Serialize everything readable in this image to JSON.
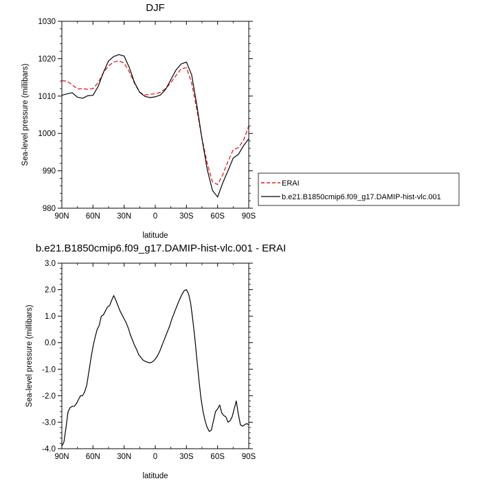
{
  "chart_data": [
    {
      "type": "line",
      "title": "DJF",
      "xlabel": "latitude",
      "ylabel": "Sea-level pressure (millibars)",
      "xlim": [
        90,
        -90
      ],
      "ylim": [
        980,
        1030
      ],
      "xtick_values": [
        90,
        60,
        30,
        0,
        -30,
        -60,
        -90
      ],
      "xtick_labels": [
        "90N",
        "60N",
        "30N",
        "0",
        "30S",
        "60S",
        "90S"
      ],
      "ytick_values": [
        980,
        990,
        1000,
        1010,
        1020,
        1030
      ],
      "ytick_labels": [
        "980",
        "990",
        "1000",
        "1010",
        "1020",
        "1030"
      ],
      "legend_position": "right",
      "series": [
        {
          "name": "ERAI",
          "color": "#e41a1c",
          "dash": "dashed",
          "x": [
            90,
            85,
            80,
            75,
            70,
            65,
            60,
            55,
            50,
            45,
            40,
            35,
            30,
            25,
            20,
            15,
            10,
            5,
            0,
            -5,
            -10,
            -15,
            -20,
            -25,
            -30,
            -35,
            -40,
            -45,
            -50,
            -55,
            -60,
            -65,
            -70,
            -75,
            -80,
            -85,
            -90
          ],
          "y": [
            1014.1,
            1014.0,
            1013.0,
            1011.9,
            1012.0,
            1011.8,
            1012.0,
            1013.6,
            1016.2,
            1018.1,
            1019.1,
            1019.4,
            1018.8,
            1016.5,
            1013.4,
            1011.0,
            1010.3,
            1010.5,
            1010.6,
            1011.0,
            1012.0,
            1013.6,
            1015.5,
            1017.3,
            1017.6,
            1013.5,
            1006.4,
            998.6,
            992.0,
            987.1,
            986.3,
            989.0,
            992.5,
            995.6,
            996.2,
            998.2,
            1002.0
          ]
        },
        {
          "name": "b.e21.B1850cmip6.f09_g17.DAMIP-hist-vlc.001",
          "color": "#000000",
          "dash": "solid",
          "x": [
            90,
            85,
            80,
            75,
            70,
            65,
            60,
            55,
            50,
            45,
            40,
            35,
            30,
            25,
            20,
            15,
            10,
            5,
            0,
            -5,
            -10,
            -15,
            -20,
            -25,
            -30,
            -35,
            -40,
            -45,
            -50,
            -55,
            -60,
            -65,
            -70,
            -75,
            -80,
            -85,
            -90
          ],
          "y": [
            1010.2,
            1010.6,
            1010.9,
            1009.7,
            1009.4,
            1010.1,
            1010.2,
            1012.6,
            1016.3,
            1019.4,
            1020.6,
            1021.1,
            1020.7,
            1017.6,
            1013.6,
            1011.0,
            1009.9,
            1009.6,
            1009.8,
            1010.3,
            1011.8,
            1014.4,
            1017.0,
            1018.6,
            1019.1,
            1015.7,
            1007.6,
            998.5,
            990.4,
            984.8,
            983.0,
            986.8,
            990.0,
            993.4,
            994.4,
            996.7,
            998.6
          ]
        }
      ]
    },
    {
      "type": "line",
      "title": "b.e21.B1850cmip6.f09_g17.DAMIP-hist-vlc.001 - ERAI",
      "xlabel": "latitude",
      "ylabel": "Sea-level pressure (millibars)",
      "xlim": [
        90,
        -90
      ],
      "ylim": [
        -4.0,
        3.0
      ],
      "xtick_values": [
        90,
        60,
        30,
        0,
        -30,
        -60,
        -90
      ],
      "xtick_labels": [
        "90N",
        "60N",
        "30N",
        "0",
        "30S",
        "60S",
        "90S"
      ],
      "ytick_values": [
        -4,
        -3,
        -2,
        -1,
        0,
        1,
        2,
        3
      ],
      "ytick_labels": [
        "-4.0",
        "-3.0",
        "-2.0",
        "-1.0",
        "0.0",
        "1.0",
        "2.0",
        "3.0"
      ],
      "series": [
        {
          "color": "#000000",
          "dash": "solid",
          "x": [
            90,
            88,
            86,
            84,
            82,
            80,
            78,
            76,
            74,
            72,
            70,
            68,
            66,
            64,
            62,
            60,
            58,
            56,
            54,
            52,
            50,
            48,
            46,
            44,
            42,
            40,
            38,
            36,
            34,
            32,
            30,
            28,
            26,
            24,
            22,
            20,
            18,
            16,
            14,
            12,
            10,
            8,
            6,
            4,
            2,
            0,
            -2,
            -4,
            -6,
            -8,
            -10,
            -12,
            -14,
            -16,
            -18,
            -20,
            -22,
            -24,
            -26,
            -28,
            -30,
            -32,
            -34,
            -36,
            -38,
            -40,
            -42,
            -44,
            -46,
            -48,
            -50,
            -52,
            -54,
            -56,
            -58,
            -60,
            -62,
            -64,
            -66,
            -68,
            -70,
            -72,
            -74,
            -76,
            -78,
            -80,
            -82,
            -84,
            -86,
            -88,
            -90
          ],
          "y": [
            -3.9,
            -3.75,
            -3.2,
            -2.6,
            -2.45,
            -2.4,
            -2.4,
            -2.3,
            -2.15,
            -2.0,
            -2.0,
            -1.85,
            -1.6,
            -1.1,
            -0.6,
            -0.15,
            0.2,
            0.5,
            0.65,
            1.0,
            1.05,
            1.2,
            1.35,
            1.4,
            1.6,
            1.78,
            1.6,
            1.4,
            1.2,
            1.05,
            0.9,
            0.75,
            0.55,
            0.3,
            0.1,
            -0.1,
            -0.25,
            -0.45,
            -0.55,
            -0.65,
            -0.7,
            -0.73,
            -0.76,
            -0.75,
            -0.7,
            -0.62,
            -0.5,
            -0.35,
            -0.15,
            0.05,
            0.25,
            0.45,
            0.65,
            0.9,
            1.1,
            1.3,
            1.5,
            1.68,
            1.85,
            1.97,
            2.0,
            1.85,
            1.5,
            0.9,
            0.2,
            -0.6,
            -1.4,
            -2.1,
            -2.6,
            -2.95,
            -3.2,
            -3.35,
            -3.3,
            -2.95,
            -2.6,
            -2.5,
            -2.35,
            -2.65,
            -2.75,
            -2.8,
            -3.0,
            -2.95,
            -2.8,
            -2.5,
            -2.2,
            -2.7,
            -3.1,
            -3.15,
            -3.1,
            -3.05,
            -3.1
          ]
        }
      ]
    }
  ]
}
